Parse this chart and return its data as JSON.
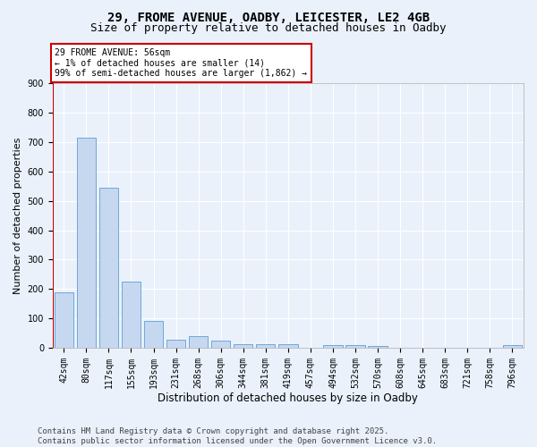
{
  "title1": "29, FROME AVENUE, OADBY, LEICESTER, LE2 4GB",
  "title2": "Size of property relative to detached houses in Oadby",
  "xlabel": "Distribution of detached houses by size in Oadby",
  "ylabel": "Number of detached properties",
  "bar_labels": [
    "42sqm",
    "80sqm",
    "117sqm",
    "155sqm",
    "193sqm",
    "231sqm",
    "268sqm",
    "306sqm",
    "344sqm",
    "381sqm",
    "419sqm",
    "457sqm",
    "494sqm",
    "532sqm",
    "570sqm",
    "608sqm",
    "645sqm",
    "683sqm",
    "721sqm",
    "758sqm",
    "796sqm"
  ],
  "bar_values": [
    190,
    715,
    545,
    225,
    90,
    28,
    38,
    25,
    13,
    13,
    12,
    0,
    9,
    9,
    7,
    0,
    0,
    0,
    0,
    0,
    10
  ],
  "bar_color": "#c5d8f0",
  "bar_edge_color": "#6fa8d6",
  "annotation_box_text": "29 FROME AVENUE: 56sqm\n← 1% of detached houses are smaller (14)\n99% of semi-detached houses are larger (1,862) →",
  "annotation_box_color": "#ffffff",
  "annotation_box_edge_color": "#cc0000",
  "vline_color": "#cc0000",
  "ylim": [
    0,
    900
  ],
  "yticks": [
    0,
    100,
    200,
    300,
    400,
    500,
    600,
    700,
    800,
    900
  ],
  "background_color": "#eaf1fb",
  "plot_bg_color": "#eaf1fb",
  "grid_color": "#ffffff",
  "footer_text": "Contains HM Land Registry data © Crown copyright and database right 2025.\nContains public sector information licensed under the Open Government Licence v3.0.",
  "title1_fontsize": 10,
  "title2_fontsize": 9,
  "xlabel_fontsize": 8.5,
  "ylabel_fontsize": 8,
  "tick_fontsize": 7,
  "annotation_fontsize": 7,
  "footer_fontsize": 6.5
}
